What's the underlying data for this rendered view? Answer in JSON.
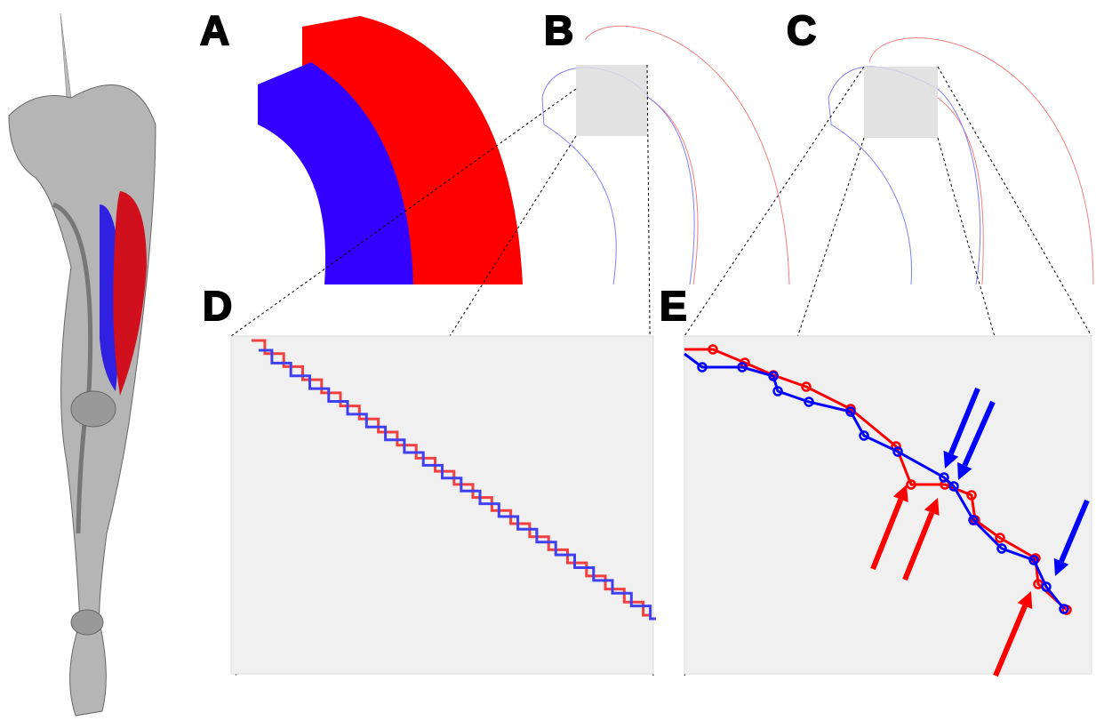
{
  "panels": {
    "a": {
      "label": "A"
    },
    "b": {
      "label": "B"
    },
    "c": {
      "label": "C"
    },
    "d": {
      "label": "D"
    },
    "e": {
      "label": "E"
    }
  }
}
